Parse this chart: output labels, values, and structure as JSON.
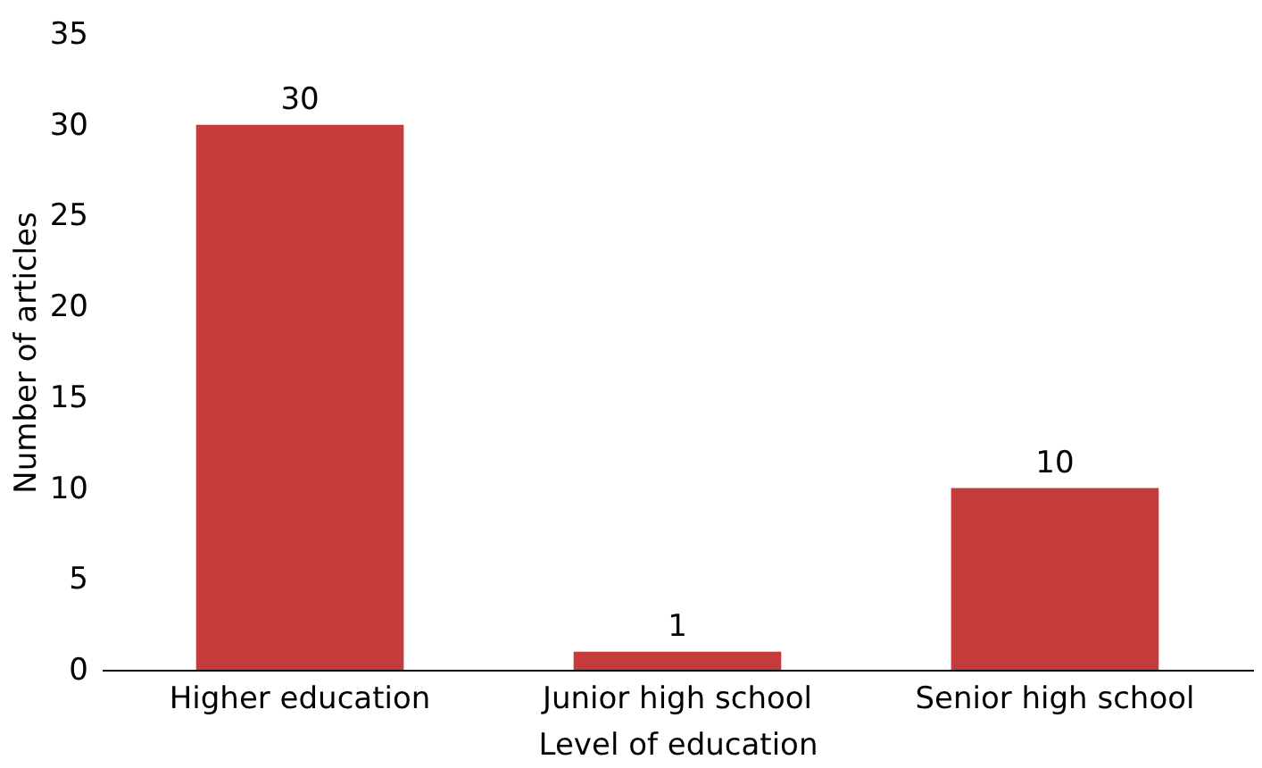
{
  "chart_data": {
    "type": "bar",
    "xlabel": "Level of education",
    "ylabel": "Number of articles",
    "categories": [
      "Higher education",
      "Junior high school",
      "Senior high school"
    ],
    "values": [
      30,
      1,
      10
    ],
    "color": "#c43b3b",
    "ylim": [
      0,
      35
    ],
    "yticks": [
      0,
      5,
      10,
      15,
      20,
      25,
      30,
      35
    ],
    "data_labels": true,
    "grid": false
  }
}
